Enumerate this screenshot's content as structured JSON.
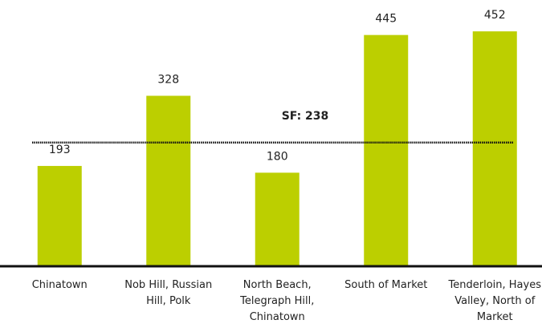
{
  "chart_data": {
    "type": "bar",
    "categories": [
      "Chinatown",
      "Nob Hill, Russian Hill, Polk",
      "North Beach, Telegraph Hill, Chinatown",
      "South of Market",
      "Tenderloin, Hayes Valley, North of Market"
    ],
    "values": [
      193,
      328,
      180,
      445,
      452
    ],
    "color": "#bccf00",
    "ylim": [
      0,
      500
    ],
    "reference_line": {
      "value": 238,
      "label": "SF: 238"
    }
  }
}
